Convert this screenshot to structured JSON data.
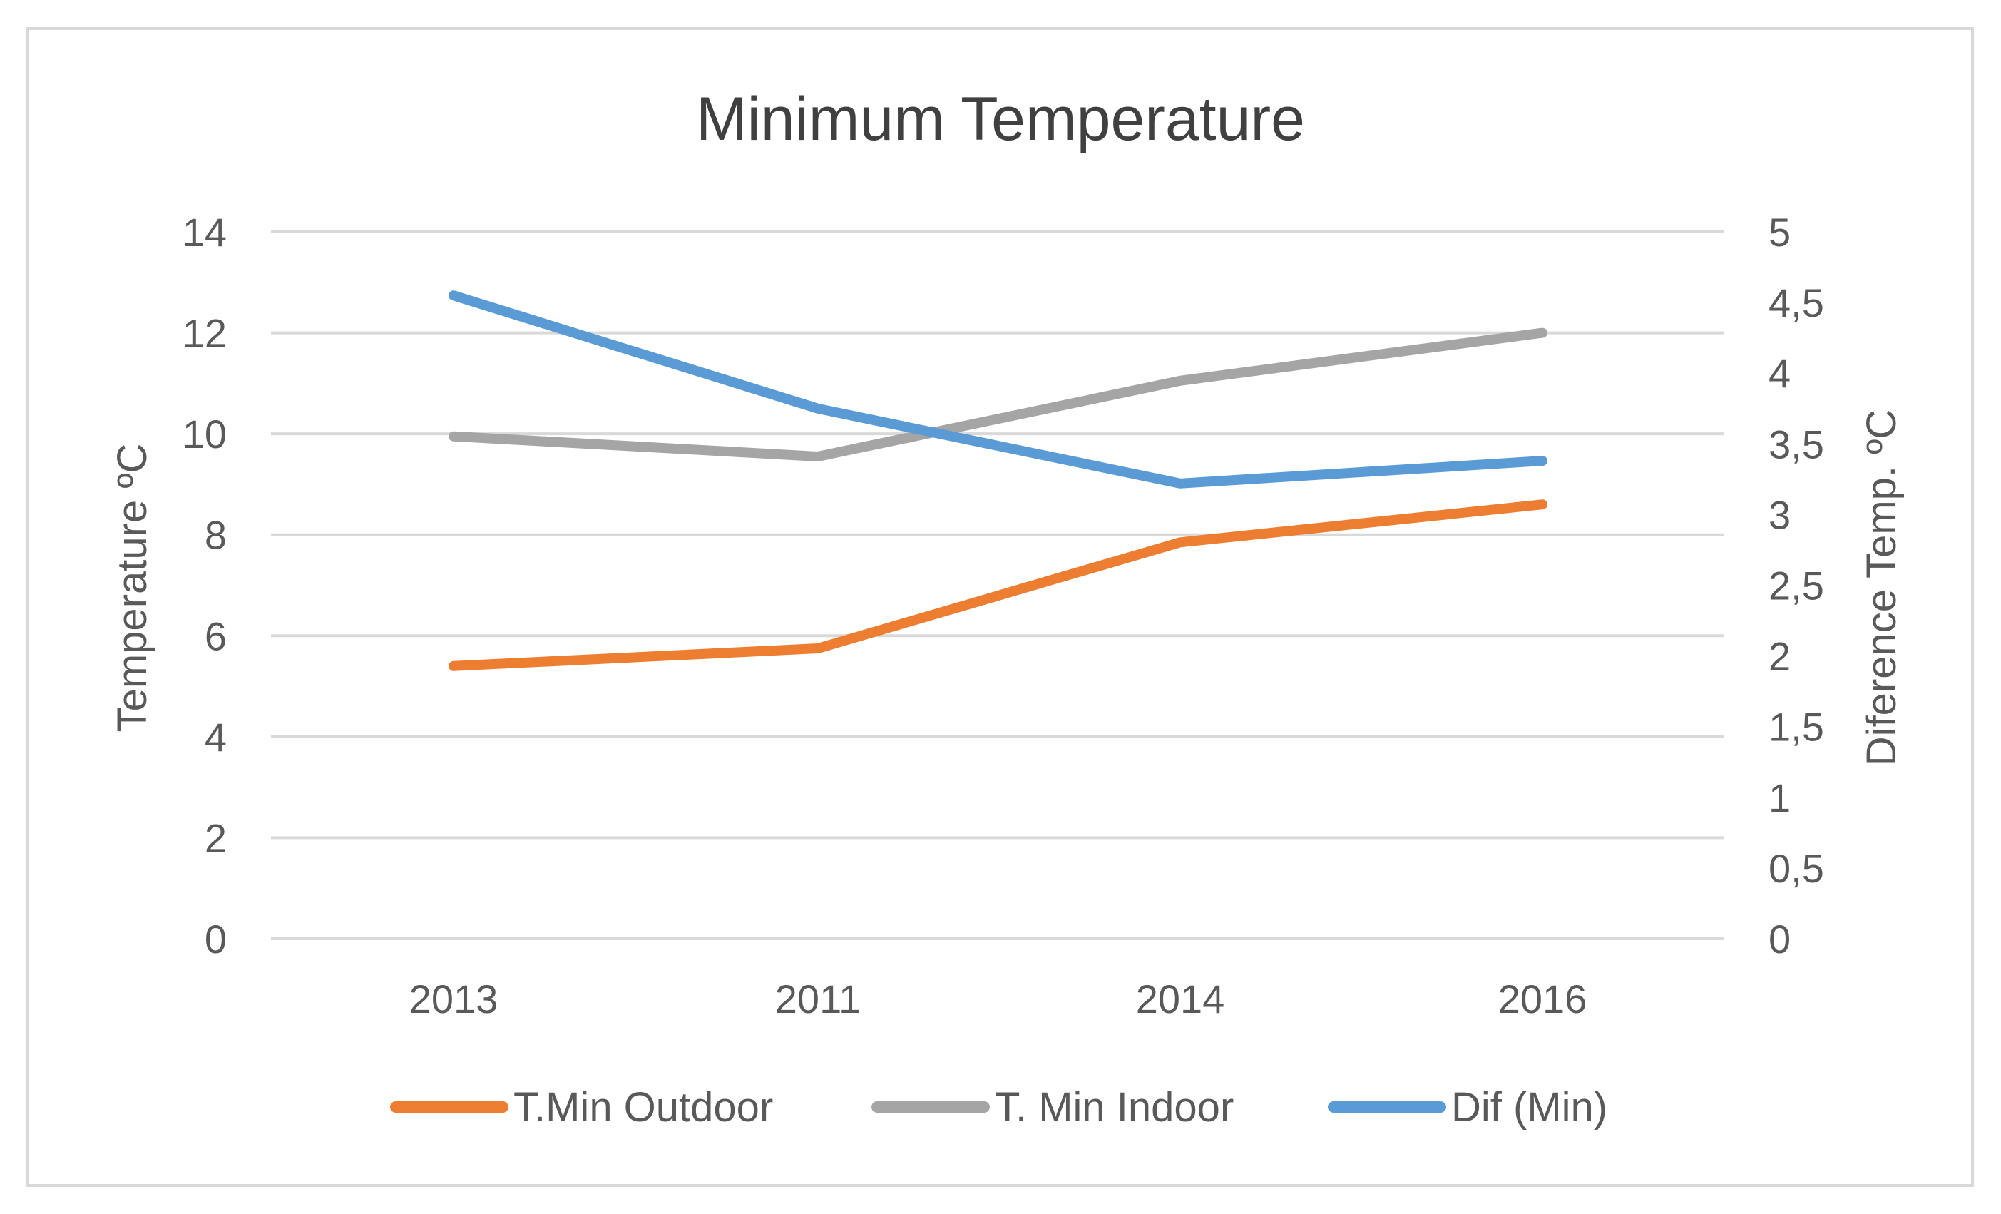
{
  "chart_data": {
    "type": "line",
    "title": "Minimum Temperature",
    "categories": [
      "2013",
      "2011",
      "2014",
      "2016"
    ],
    "y_left": {
      "label": "Temperature ºC",
      "ylim": [
        0,
        14
      ],
      "ticks": [
        "0",
        "2",
        "4",
        "6",
        "8",
        "10",
        "12",
        "14"
      ]
    },
    "y_right": {
      "label": "Diference Temp. ºC",
      "ylim": [
        0,
        5
      ],
      "ticks": [
        "0",
        "0,5",
        "1",
        "1,5",
        "2",
        "2,5",
        "3",
        "3,5",
        "4",
        "4,5",
        "5"
      ]
    },
    "series": [
      {
        "name": "T.Min Outdoor",
        "axis": "left",
        "color": "#ed7d31",
        "values": [
          5.4,
          5.75,
          7.85,
          8.6
        ]
      },
      {
        "name": "T. Min Indoor",
        "axis": "left",
        "color": "#a5a5a5",
        "values": [
          9.95,
          9.55,
          11.05,
          12.0
        ]
      },
      {
        "name": "Dif (Min)",
        "axis": "right",
        "color": "#5b9bd5",
        "values": [
          4.55,
          3.75,
          3.22,
          3.38
        ]
      }
    ],
    "grid": true,
    "legend_position": "bottom"
  }
}
